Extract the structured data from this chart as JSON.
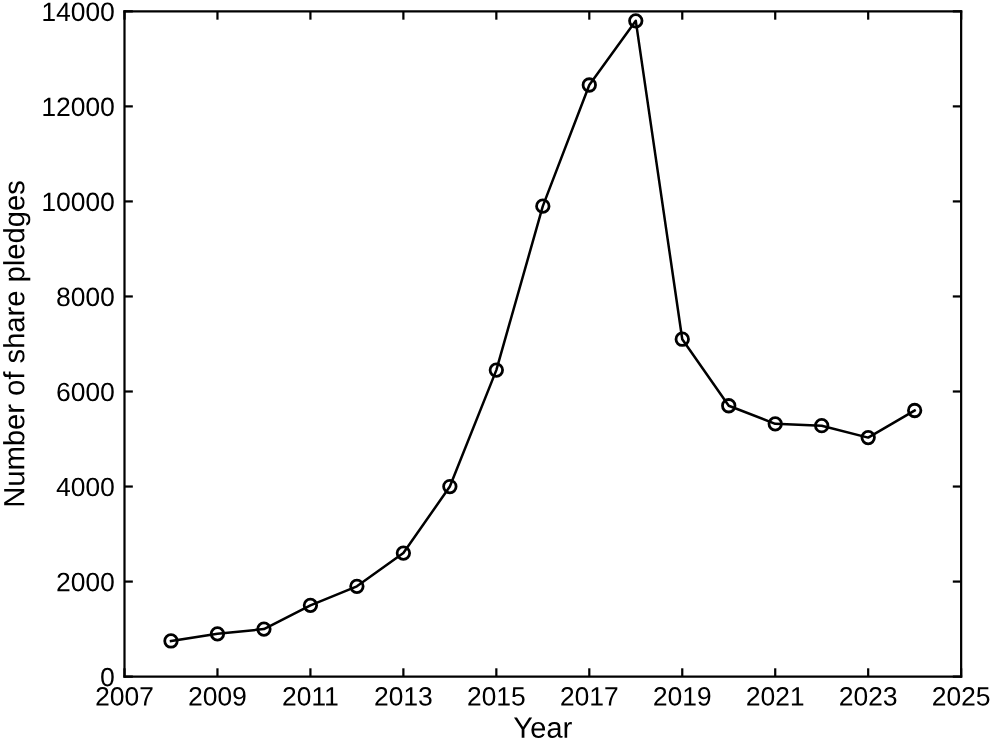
{
  "chart_data": {
    "type": "line",
    "xlabel": "Year",
    "ylabel": "Number of share pledges",
    "x": [
      2008,
      2009,
      2010,
      2011,
      2012,
      2013,
      2014,
      2015,
      2016,
      2017,
      2018,
      2019,
      2020,
      2021,
      2022,
      2023,
      2024
    ],
    "series": [
      {
        "color": "#000000",
        "values": [
          750,
          900,
          1000,
          1500,
          1900,
          2600,
          4000,
          6450,
          9900,
          12450,
          13800,
          7100,
          5700,
          5320,
          5280,
          5030,
          5600
        ]
      }
    ],
    "xlim": [
      2007,
      2025
    ],
    "xticks": [
      2007,
      2009,
      2011,
      2013,
      2015,
      2017,
      2019,
      2021,
      2023,
      2025
    ],
    "ylim": [
      0,
      14000
    ],
    "yticks": [
      0,
      2000,
      4000,
      6000,
      8000,
      10000,
      12000,
      14000
    ],
    "grid": false,
    "legend": false,
    "marker": "circle",
    "line_style": "solid"
  }
}
